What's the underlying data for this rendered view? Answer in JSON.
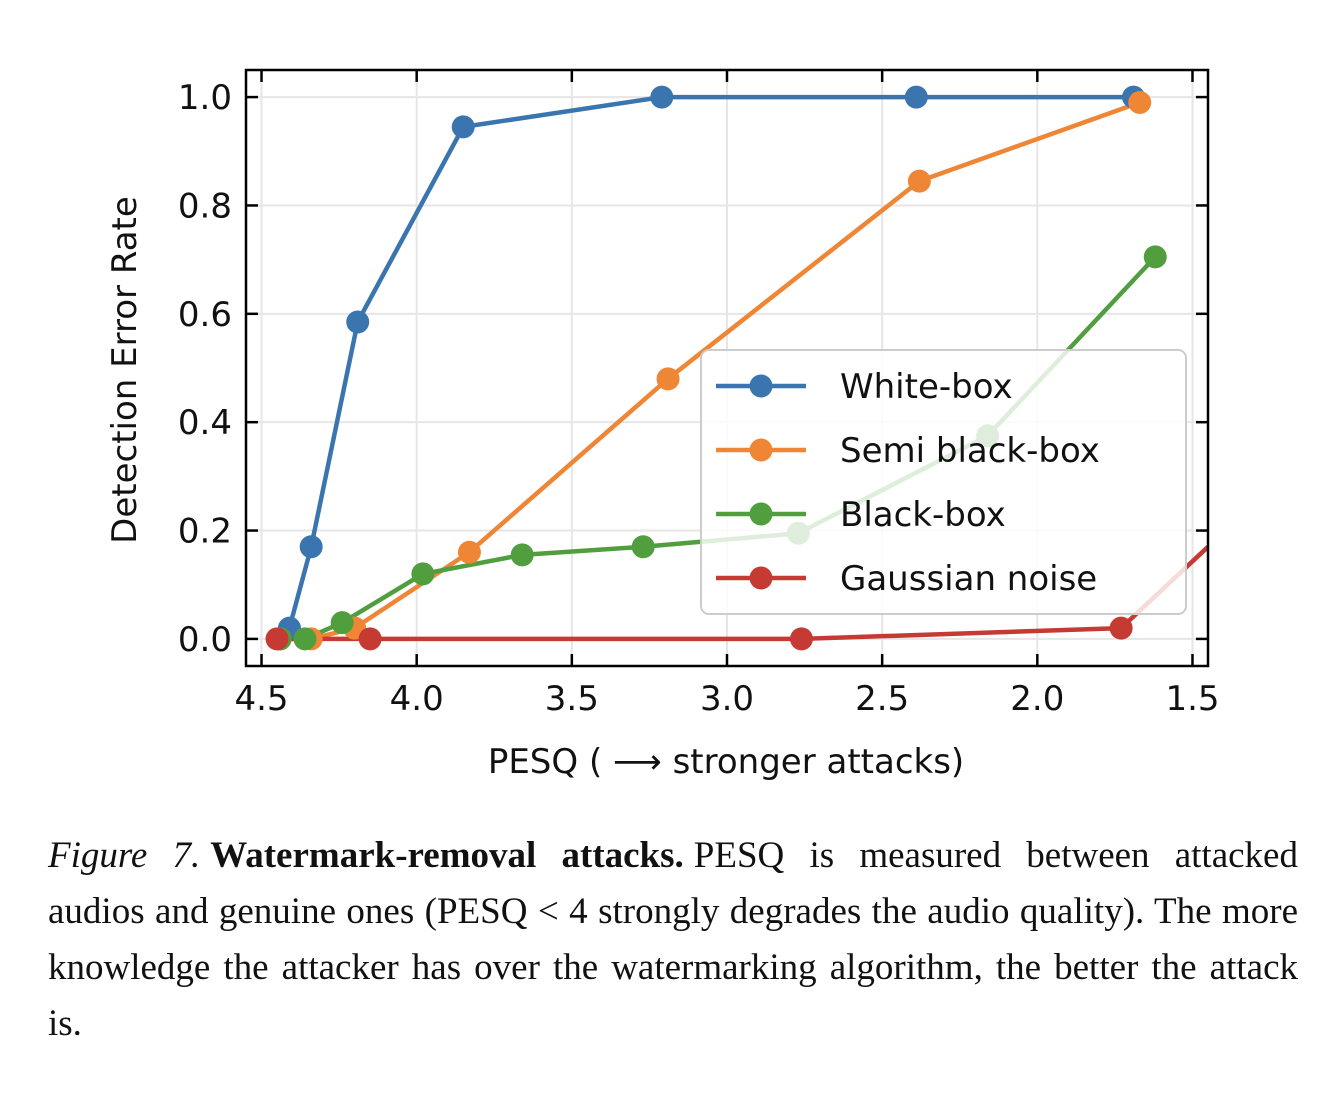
{
  "chart_data": {
    "type": "line",
    "title": "",
    "xlabel": "PESQ ( ⟶  stronger attacks)",
    "ylabel": "Detection Error Rate",
    "xlim": [
      4.55,
      1.45
    ],
    "ylim": [
      -0.05,
      1.05
    ],
    "x_reversed": true,
    "xticks": [
      4.5,
      4.0,
      3.5,
      3.0,
      2.5,
      2.0,
      1.5
    ],
    "xtick_labels": [
      "4.5",
      "4.0",
      "3.5",
      "3.0",
      "2.5",
      "2.0",
      "1.5"
    ],
    "yticks": [
      0.0,
      0.2,
      0.4,
      0.6,
      0.8,
      1.0
    ],
    "ytick_labels": [
      "0.0",
      "0.2",
      "0.4",
      "0.6",
      "0.8",
      "1.0"
    ],
    "grid": true,
    "legend_position": "lower-right",
    "series": [
      {
        "name": "White-box",
        "color": "#3b75af",
        "x": [
          4.44,
          4.41,
          4.34,
          4.19,
          3.85,
          3.21,
          2.39,
          1.69
        ],
        "y": [
          0.0,
          0.02,
          0.17,
          0.585,
          0.945,
          1.0,
          1.0,
          1.0
        ]
      },
      {
        "name": "Semi black-box",
        "color": "#ef8636",
        "x": [
          4.44,
          4.34,
          4.2,
          3.83,
          3.19,
          2.38,
          1.67
        ],
        "y": [
          0.0,
          0.0,
          0.02,
          0.16,
          0.48,
          0.845,
          0.99
        ]
      },
      {
        "name": "Black-box",
        "color": "#519e3e",
        "x": [
          4.44,
          4.36,
          4.24,
          3.98,
          3.66,
          3.27,
          2.77,
          2.16,
          1.62
        ],
        "y": [
          0.0,
          0.0,
          0.03,
          0.12,
          0.155,
          0.17,
          0.195,
          0.375,
          0.705
        ]
      },
      {
        "name": "Gaussian noise",
        "color": "#c53a32",
        "x": [
          4.45,
          4.15,
          2.76,
          1.73,
          1.45
        ],
        "y": [
          0.0,
          0.0,
          0.0,
          0.02,
          0.17
        ],
        "marker_count": 4
      }
    ]
  },
  "caption": {
    "label": "Figure 7.",
    "title": "Watermark-removal attacks.",
    "text": "PESQ is measured between attacked audios and genuine ones (PESQ < 4 strongly degrades the audio quality). The more knowledge the attacker has over the watermarking algorithm, the better the attack is."
  }
}
